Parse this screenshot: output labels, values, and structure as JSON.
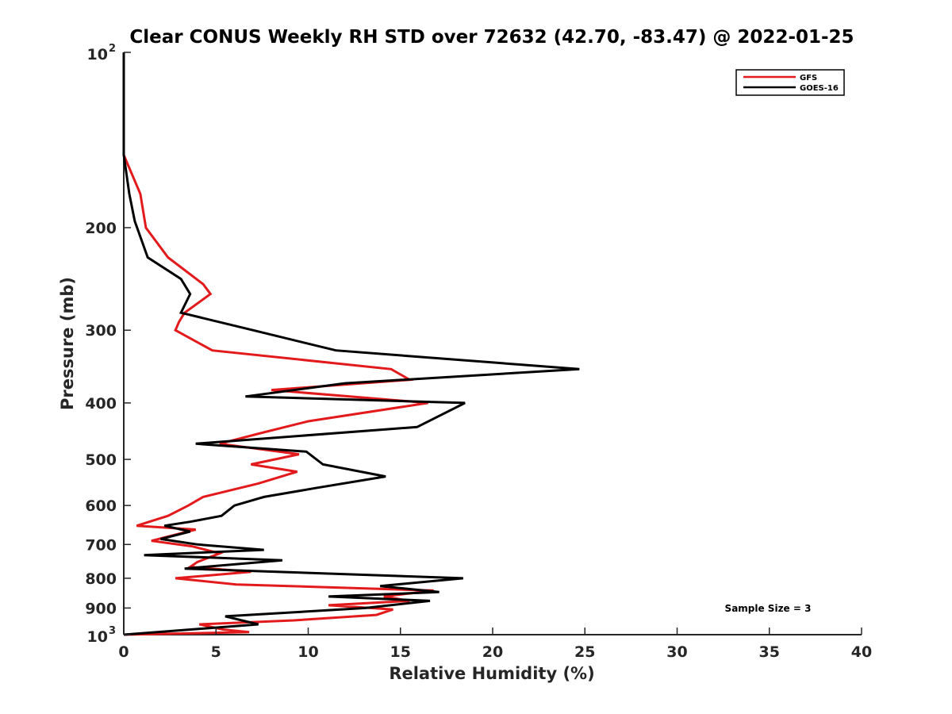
{
  "chart_data": {
    "type": "line",
    "title": "Clear CONUS Weekly RH STD over 72632 (42.70, -83.47) @ 2022-01-25",
    "xlabel": "Relative Humidity (%)",
    "ylabel": "Pressure (mb)",
    "xlim": [
      0,
      40
    ],
    "ylim": [
      100,
      1000
    ],
    "y_scale": "log",
    "y_reversed": true,
    "grid": false,
    "legend_position": "top-right",
    "x_ticks": [
      "0",
      "5",
      "10",
      "15",
      "20",
      "25",
      "30",
      "35",
      "40"
    ],
    "y_ticks": [
      {
        "value": 100,
        "base": "10",
        "exp": "2"
      },
      {
        "value": 200,
        "base": "200",
        "exp": ""
      },
      {
        "value": 300,
        "base": "300",
        "exp": ""
      },
      {
        "value": 400,
        "base": "400",
        "exp": ""
      },
      {
        "value": 500,
        "base": "500",
        "exp": ""
      },
      {
        "value": 600,
        "base": "600",
        "exp": ""
      },
      {
        "value": 700,
        "base": "700",
        "exp": ""
      },
      {
        "value": 800,
        "base": "800",
        "exp": ""
      },
      {
        "value": 900,
        "base": "900",
        "exp": ""
      },
      {
        "value": 1000,
        "base": "10",
        "exp": "3"
      }
    ],
    "series": [
      {
        "name": "GFS",
        "color": "#e31a1c",
        "points": [
          [
            0,
            100
          ],
          [
            0,
            150
          ],
          [
            0.9,
            175
          ],
          [
            1.2,
            200
          ],
          [
            2.4,
            225
          ],
          [
            4.3,
            250
          ],
          [
            4.7,
            260
          ],
          [
            3.3,
            280
          ],
          [
            3.0,
            290
          ],
          [
            2.8,
            300
          ],
          [
            4.8,
            325
          ],
          [
            14.5,
            350
          ],
          [
            15.5,
            365
          ],
          [
            8.0,
            380
          ],
          [
            16.5,
            400
          ],
          [
            10.0,
            430
          ],
          [
            7.5,
            450
          ],
          [
            5.2,
            470
          ],
          [
            9.5,
            490
          ],
          [
            6.9,
            510
          ],
          [
            9.4,
            525
          ],
          [
            7.3,
            550
          ],
          [
            4.3,
            580
          ],
          [
            3.5,
            600
          ],
          [
            2.4,
            625
          ],
          [
            0.7,
            650
          ],
          [
            3.9,
            660
          ],
          [
            1.5,
            690
          ],
          [
            3.7,
            705
          ],
          [
            5.2,
            725
          ],
          [
            4.0,
            750
          ],
          [
            3.6,
            765
          ],
          [
            6.9,
            780
          ],
          [
            2.8,
            800
          ],
          [
            6.1,
            820
          ],
          [
            16.8,
            840
          ],
          [
            14.1,
            860
          ],
          [
            15.5,
            875
          ],
          [
            11.1,
            890
          ],
          [
            14.6,
            905
          ],
          [
            13.7,
            925
          ],
          [
            9.2,
            945
          ],
          [
            4.1,
            960
          ],
          [
            5.4,
            980
          ],
          [
            6.8,
            990
          ],
          [
            0,
            1000
          ]
        ]
      },
      {
        "name": "GOES-16",
        "color": "#000000",
        "points": [
          [
            0,
            100
          ],
          [
            0,
            150
          ],
          [
            0.3,
            175
          ],
          [
            0.6,
            195
          ],
          [
            1.3,
            225
          ],
          [
            3.1,
            245
          ],
          [
            3.6,
            260
          ],
          [
            3.1,
            280
          ],
          [
            7.0,
            300
          ],
          [
            11.5,
            325
          ],
          [
            24.7,
            350
          ],
          [
            12.0,
            370
          ],
          [
            6.6,
            390
          ],
          [
            18.5,
            400
          ],
          [
            15.9,
            440
          ],
          [
            3.9,
            470
          ],
          [
            9.9,
            485
          ],
          [
            10.8,
            510
          ],
          [
            14.2,
            535
          ],
          [
            10.4,
            560
          ],
          [
            7.6,
            580
          ],
          [
            6.0,
            600
          ],
          [
            5.3,
            625
          ],
          [
            3.6,
            640
          ],
          [
            2.2,
            650
          ],
          [
            3.6,
            665
          ],
          [
            2.0,
            685
          ],
          [
            4.0,
            700
          ],
          [
            7.6,
            715
          ],
          [
            1.1,
            730
          ],
          [
            8.6,
            745
          ],
          [
            3.3,
            770
          ],
          [
            18.4,
            800
          ],
          [
            13.9,
            825
          ],
          [
            17.1,
            845
          ],
          [
            11.1,
            860
          ],
          [
            16.6,
            875
          ],
          [
            13.1,
            900
          ],
          [
            5.5,
            930
          ],
          [
            7.3,
            960
          ],
          [
            0,
            1000
          ]
        ]
      }
    ],
    "annotation": "Sample Size = 3"
  }
}
